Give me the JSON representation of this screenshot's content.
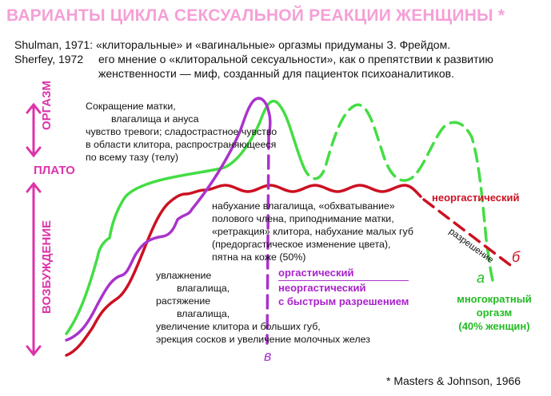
{
  "title": "ВАРИАНТЫ ЦИКЛА СЕКСУАЛЬНОЙ РЕАКЦИИ ЖЕНЩИНЫ *",
  "refs": {
    "line1": "Shulman, 1971: «клиторальные» и «вагинальные» оргазмы придуманы З. Фрейдом.",
    "line2_author": "Sherfey, 1972",
    "line2_text": "его мнение о «клиторальной сексуальности», как о препятствии к развитию",
    "line3": "женственности — миф, созданный для пациенток психоаналитиков."
  },
  "phases": {
    "orgasm": "ОРГАЗМ",
    "plateau": "ПЛАТО",
    "arousal": "ВОЗБУЖДЕНИЕ"
  },
  "annotations": {
    "orgasm": [
      "Сокращение матки,",
      "влагалища и ануса",
      "чувство тревоги; сладострастное чувство",
      "в области клитора, распространяющееся",
      "по всему тазу (телу)"
    ],
    "plateau": [
      "набухание влагалища, «обхватывание»",
      "полового члена, приподнимание матки,",
      "«ретракция» клитора, набухание малых губ",
      "(предоргастическое изменение цвета),",
      "пятна на коже (50%)"
    ],
    "arousal": [
      "увлажнение",
      "влагалища,",
      "растяжение",
      "влагалища,",
      "увеличение клитора и больших губ,",
      "эрекция сосков и увеличение молочных желез"
    ]
  },
  "legend": {
    "red_label": "неоргастический",
    "resolution": "разрешение",
    "letter_b": "б",
    "letter_a": "а",
    "letter_v": "в",
    "purple_line1": "оргастический",
    "purple_line2": "неоргастический",
    "purple_line3": "с быстрым разрешением",
    "green_line1": "многократный",
    "green_line2": "оргазм",
    "green_line3": "(40% женщин)"
  },
  "footnote": "* Masters & Johnson, 1966",
  "colors": {
    "pink": "#f4a0d6",
    "magenta": "#dd33aa",
    "red": "#cc1122",
    "green": "#44dd44",
    "purple": "#aa33cc"
  }
}
